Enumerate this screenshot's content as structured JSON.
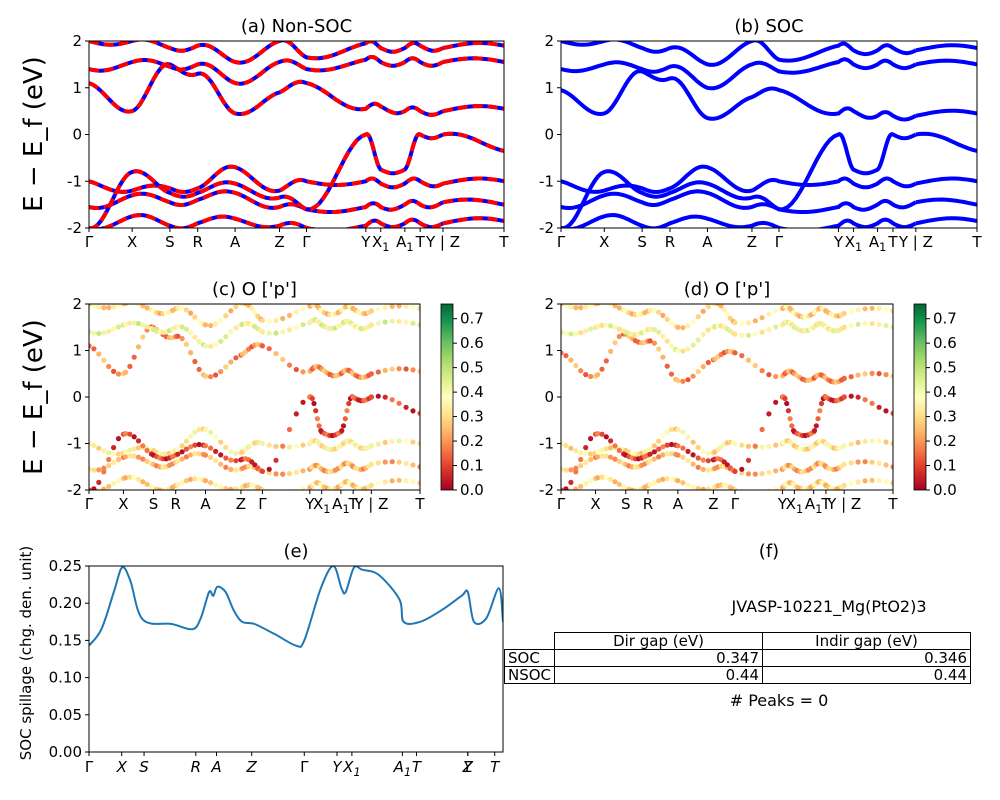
{
  "figure": {
    "ylabel": "E − E_f (eV)"
  },
  "panels": {
    "a": {
      "title": "(a) Non-SOC"
    },
    "b": {
      "title": "(b) SOC"
    },
    "c": {
      "title": "(c)  O ['p']"
    },
    "d": {
      "title": "(d) O ['p']"
    },
    "e": {
      "title": "(e)",
      "ylabel": "SOC spillage (chg. den. unit)"
    },
    "f": {
      "title": "(f)"
    }
  },
  "info": {
    "material": "JVASP-10221_Mg(PtO2)3",
    "table_headers": [
      "Dir gap (eV)",
      "Indir gap (eV)"
    ],
    "rows": [
      {
        "label": "SOC",
        "dir": "0.347",
        "indir": "0.346"
      },
      {
        "label": "NSOC",
        "dir": "0.44",
        "indir": "0.44"
      }
    ],
    "peaks": "# Peaks = 0"
  },
  "colors": {
    "soc": "#0000ff",
    "nonsoc": "#ff0000",
    "spillage": "#1f77b4",
    "colormap": [
      "#a50026",
      "#d73027",
      "#f46d43",
      "#fdae61",
      "#fee08b",
      "#ffffbf",
      "#d9ef8b",
      "#a6d96a",
      "#66bd63",
      "#1a9850",
      "#006837"
    ]
  },
  "chart_data": [
    {
      "panel": "a",
      "type": "line",
      "title": "(a) Non-SOC",
      "ylabel": "E − E_f (eV)",
      "ylim": [
        -2,
        2
      ],
      "yticks": [
        -2,
        -1,
        0,
        1,
        2
      ],
      "kpath_ticks": [
        "Γ",
        "X",
        "S",
        "R",
        "A",
        "Z",
        "Γ",
        "Y",
        "X₁",
        "A₁",
        "T",
        "Y | Z",
        "T"
      ],
      "kpath_positions": [
        0,
        0.104,
        0.195,
        0.262,
        0.352,
        0.459,
        0.524,
        0.667,
        0.703,
        0.761,
        0.798,
        0.853,
        1.0
      ],
      "discontinuities": [
        0.853
      ],
      "series": [
        {
          "values_at_ticks": [
            -2.0,
            -1.75,
            -1.95,
            -1.9,
            -1.8,
            -1.95,
            -2.0,
            -1.95,
            -1.9,
            -1.9,
            -1.9,
            -1.9,
            -1.85
          ]
        },
        {
          "values_at_ticks": [
            -1.55,
            -1.3,
            -1.45,
            -1.4,
            -1.25,
            -1.55,
            -1.6,
            -1.55,
            -1.55,
            -1.5,
            -1.5,
            -1.45,
            -1.5
          ]
        },
        {
          "values_at_ticks": [
            -1.0,
            -1.2,
            -1.15,
            -1.15,
            -0.7,
            -1.2,
            -1.0,
            -1.0,
            -1.05,
            -1.05,
            -1.0,
            -1.05,
            -1.0
          ]
        },
        {
          "values_at_ticks": [
            -2.0,
            -0.8,
            -1.25,
            -1.25,
            -1.05,
            -1.35,
            -1.6,
            0.0,
            -0.75,
            -0.75,
            0.0,
            0.0,
            -0.35
          ]
        },
        {
          "values_at_ticks": [
            1.1,
            0.5,
            1.5,
            1.3,
            0.45,
            0.9,
            1.1,
            0.55,
            0.6,
            0.5,
            0.5,
            0.5,
            0.55
          ]
        },
        {
          "values_at_ticks": [
            1.4,
            1.55,
            1.45,
            1.5,
            1.1,
            1.55,
            1.4,
            1.6,
            1.55,
            1.55,
            1.55,
            1.55,
            1.55
          ]
        },
        {
          "values_at_ticks": [
            2.0,
            2.0,
            1.85,
            1.9,
            1.55,
            2.0,
            1.65,
            1.95,
            1.85,
            1.85,
            1.9,
            1.85,
            1.9
          ]
        }
      ]
    },
    {
      "panel": "b",
      "type": "line",
      "title": "(b) SOC",
      "ylim": [
        -2,
        2
      ],
      "yticks": [
        -2,
        -1,
        0,
        1,
        2
      ],
      "kpath_ticks": [
        "Γ",
        "X",
        "S",
        "R",
        "A",
        "Z",
        "Γ",
        "Y",
        "X₁",
        "A₁",
        "T",
        "Y | Z",
        "T"
      ],
      "kpath_positions": [
        0,
        0.104,
        0.195,
        0.262,
        0.352,
        0.459,
        0.524,
        0.667,
        0.703,
        0.761,
        0.798,
        0.853,
        1.0
      ],
      "discontinuities": [
        0.853
      ],
      "series": [
        {
          "values_at_ticks": [
            -2.0,
            -1.75,
            -1.95,
            -1.9,
            -1.8,
            -1.95,
            -2.0,
            -1.95,
            -1.9,
            -1.9,
            -1.9,
            -1.9,
            -1.85
          ]
        },
        {
          "values_at_ticks": [
            -1.55,
            -1.3,
            -1.45,
            -1.4,
            -1.25,
            -1.55,
            -1.6,
            -1.55,
            -1.55,
            -1.5,
            -1.5,
            -1.45,
            -1.5
          ]
        },
        {
          "values_at_ticks": [
            -1.0,
            -1.2,
            -1.15,
            -1.15,
            -0.7,
            -1.2,
            -1.0,
            -1.0,
            -1.05,
            -1.05,
            -1.0,
            -1.05,
            -1.0
          ]
        },
        {
          "values_at_ticks": [
            -2.0,
            -0.8,
            -1.25,
            -1.25,
            -1.05,
            -1.35,
            -1.6,
            0.0,
            -0.75,
            -0.75,
            0.0,
            0.0,
            -0.35
          ]
        },
        {
          "values_at_ticks": [
            0.95,
            0.45,
            1.35,
            1.2,
            0.35,
            0.8,
            0.95,
            0.45,
            0.5,
            0.4,
            0.4,
            0.4,
            0.45
          ]
        },
        {
          "values_at_ticks": [
            1.4,
            1.5,
            1.4,
            1.45,
            1.0,
            1.5,
            1.35,
            1.55,
            1.5,
            1.5,
            1.5,
            1.5,
            1.5
          ]
        },
        {
          "values_at_ticks": [
            2.0,
            2.0,
            1.85,
            1.85,
            1.5,
            2.0,
            1.6,
            1.9,
            1.8,
            1.8,
            1.85,
            1.8,
            1.85
          ]
        }
      ]
    },
    {
      "panel": "c",
      "type": "scatter",
      "title": "(c)  O ['p']",
      "ylabel": "E − E_f (eV)",
      "ylim": [
        -2,
        2
      ],
      "yticks": [
        -2,
        -1,
        0,
        1,
        2
      ],
      "kpath_ticks": [
        "Γ",
        "X",
        "S",
        "R",
        "A",
        "Z",
        "Γ",
        "Y",
        "X₁",
        "A₁",
        "T",
        "Y | Z",
        "T"
      ],
      "kpath_positions": [
        0,
        0.104,
        0.195,
        0.262,
        0.352,
        0.459,
        0.524,
        0.667,
        0.703,
        0.761,
        0.798,
        0.853,
        1.0
      ],
      "colorbar": {
        "min": 0.0,
        "max": 0.76,
        "ticks": [
          0.0,
          0.1,
          0.2,
          0.3,
          0.4,
          0.5,
          0.6,
          0.7
        ],
        "colormap": "RdYlGn"
      },
      "series_weight": [
        0.3,
        0.25,
        0.35,
        0.1,
        0.2,
        0.4,
        0.3
      ]
    },
    {
      "panel": "d",
      "type": "scatter",
      "title": "(d) O ['p']",
      "ylim": [
        -2,
        2
      ],
      "yticks": [
        -2,
        -1,
        0,
        1,
        2
      ],
      "kpath_ticks": [
        "Γ",
        "X",
        "S",
        "R",
        "A",
        "Z",
        "Γ",
        "Y",
        "X₁",
        "A₁",
        "T",
        "Y | Z",
        "T"
      ],
      "kpath_positions": [
        0,
        0.104,
        0.195,
        0.262,
        0.352,
        0.459,
        0.524,
        0.667,
        0.703,
        0.761,
        0.798,
        0.853,
        1.0
      ],
      "colorbar": {
        "min": 0.0,
        "max": 0.76,
        "ticks": [
          0.0,
          0.1,
          0.2,
          0.3,
          0.4,
          0.5,
          0.6,
          0.7
        ],
        "colormap": "RdYlGn"
      },
      "series_weight": [
        0.3,
        0.25,
        0.33,
        0.1,
        0.2,
        0.38,
        0.3
      ]
    },
    {
      "panel": "e",
      "type": "line",
      "title": "(e)",
      "ylabel": "SOC spillage (chg. den. unit)",
      "ylim": [
        0.0,
        0.25
      ],
      "yticks": [
        0.0,
        0.05,
        0.1,
        0.15,
        0.2,
        0.25
      ],
      "xticks": [
        "Γ",
        "X",
        "S",
        "R",
        "A",
        "Z",
        "Γ",
        "Y",
        "X₁",
        "A₁",
        "T",
        "Y",
        "Z",
        "T"
      ],
      "xtick_positions": [
        0,
        0.079,
        0.133,
        0.258,
        0.308,
        0.393,
        0.52,
        0.599,
        0.635,
        0.757,
        0.791,
        0.915,
        0.915,
        0.98
      ],
      "x": [
        0,
        0.03,
        0.06,
        0.08,
        0.1,
        0.13,
        0.2,
        0.25,
        0.27,
        0.29,
        0.3,
        0.31,
        0.33,
        0.35,
        0.37,
        0.4,
        0.45,
        0.5,
        0.52,
        0.56,
        0.59,
        0.61,
        0.62,
        0.64,
        0.66,
        0.7,
        0.75,
        0.76,
        0.8,
        0.85,
        0.9,
        0.915,
        0.93,
        0.96,
        0.99,
        1.0
      ],
      "y": [
        0.143,
        0.165,
        0.215,
        0.248,
        0.23,
        0.178,
        0.172,
        0.165,
        0.18,
        0.215,
        0.21,
        0.222,
        0.215,
        0.19,
        0.175,
        0.172,
        0.158,
        0.143,
        0.15,
        0.22,
        0.25,
        0.22,
        0.215,
        0.248,
        0.245,
        0.238,
        0.205,
        0.175,
        0.175,
        0.19,
        0.21,
        0.215,
        0.175,
        0.18,
        0.22,
        0.175
      ]
    }
  ]
}
